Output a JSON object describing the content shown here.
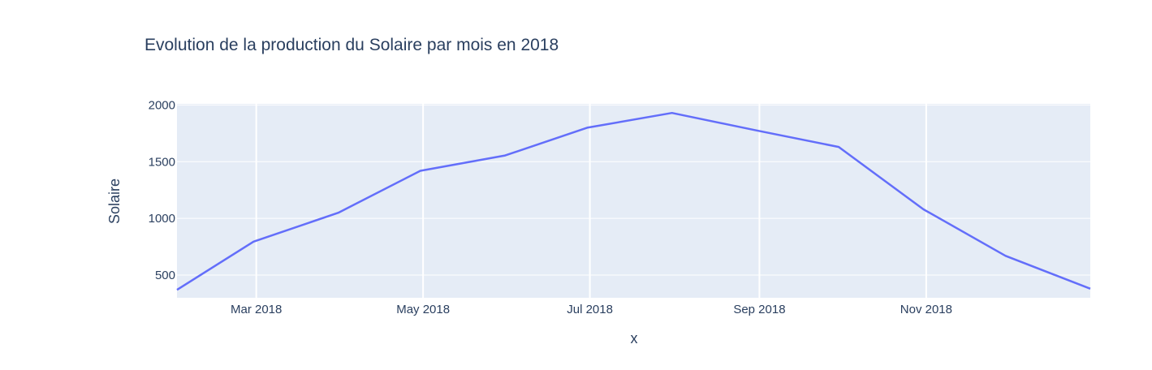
{
  "chart_data": {
    "type": "line",
    "title": "Evolution de la production du Solaire par mois en 2018",
    "xlabel": "x",
    "ylabel": "Solaire",
    "x": [
      "2018-01-31",
      "2018-02-28",
      "2018-03-31",
      "2018-04-30",
      "2018-05-31",
      "2018-06-30",
      "2018-07-31",
      "2018-08-31",
      "2018-09-30",
      "2018-10-31",
      "2018-11-30",
      "2018-12-31"
    ],
    "series": [
      {
        "values": [
          370,
          795,
          1050,
          1420,
          1555,
          1800,
          1930,
          1775,
          1630,
          1080,
          670,
          380
        ]
      }
    ],
    "xlim": [
      "2018-01-31",
      "2018-12-31"
    ],
    "ylim": [
      300,
      2010
    ],
    "x_ticks": [
      {
        "date": "2018-03-01",
        "label": "Mar 2018"
      },
      {
        "date": "2018-05-01",
        "label": "May 2018"
      },
      {
        "date": "2018-07-01",
        "label": "Jul 2018"
      },
      {
        "date": "2018-09-01",
        "label": "Sep 2018"
      },
      {
        "date": "2018-11-01",
        "label": "Nov 2018"
      }
    ],
    "y_ticks": [
      500,
      1000,
      1500,
      2000
    ],
    "grid": true,
    "colors": {
      "line": "#636efa",
      "plot_bg": "#e5ecf6",
      "grid": "#ffffff",
      "text": "#2a3f5f"
    }
  }
}
